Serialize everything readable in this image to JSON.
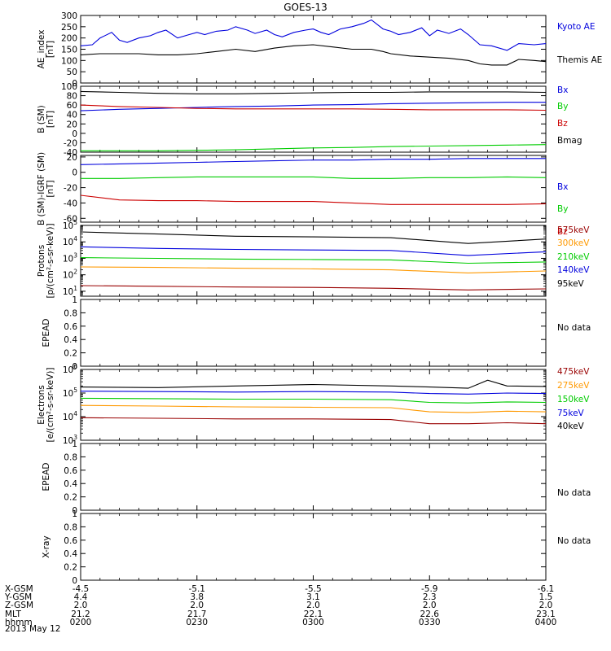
{
  "title": "GOES-13",
  "date": "2013 May 12",
  "orbit": {
    "labels": [
      "X-GSM",
      "Y-GSM",
      "Z-GSM",
      "MLT",
      "hhmm"
    ],
    "columns": [
      {
        "values": [
          "-4.5",
          "4.4",
          "2.0",
          "21.2",
          "0200"
        ]
      },
      {
        "values": [
          "-5.1",
          "3.8",
          "2.0",
          "21.7",
          "0230"
        ]
      },
      {
        "values": [
          "-5.5",
          "3.1",
          "2.0",
          "22.1",
          "0300"
        ]
      },
      {
        "values": [
          "-5.9",
          "2.3",
          "2.0",
          "22.6",
          "0330"
        ]
      },
      {
        "values": [
          "-6.1",
          "1.5",
          "2.0",
          "23.1",
          "0400"
        ]
      }
    ]
  },
  "colors": {
    "black": "#000000",
    "blue": "#0000dd",
    "green": "#00cc00",
    "red": "#cc0000",
    "orange": "#ff9900",
    "darkred": "#990000"
  },
  "chart_data": [
    {
      "type": "line",
      "ylabel": "AE_index\n[nT]",
      "ylim": [
        0,
        300
      ],
      "yticks": [
        0,
        50,
        100,
        150,
        200,
        250,
        300
      ],
      "series": [
        {
          "name": "Kyoto AE",
          "color": "#0000dd",
          "x": [
            0,
            3,
            5,
            8,
            10,
            12,
            15,
            18,
            20,
            22,
            25,
            28,
            30,
            32,
            35,
            38,
            40,
            43,
            45,
            48,
            50,
            52,
            55,
            58,
            60,
            62,
            64,
            67,
            70,
            73,
            75,
            78,
            80,
            82,
            85,
            88,
            90,
            92,
            95,
            98,
            100,
            103,
            106,
            110,
            113,
            117,
            120
          ],
          "values": [
            165,
            170,
            200,
            225,
            190,
            180,
            200,
            210,
            225,
            235,
            200,
            215,
            225,
            215,
            230,
            235,
            250,
            235,
            220,
            235,
            215,
            205,
            225,
            235,
            240,
            225,
            215,
            240,
            250,
            265,
            280,
            240,
            230,
            215,
            225,
            245,
            210,
            235,
            220,
            240,
            215,
            170,
            165,
            145,
            175,
            170,
            175
          ]
        },
        {
          "name": "Themis AE",
          "color": "#000000",
          "x": [
            0,
            5,
            10,
            15,
            20,
            25,
            30,
            35,
            40,
            45,
            50,
            55,
            60,
            65,
            70,
            75,
            78,
            80,
            85,
            90,
            95,
            100,
            103,
            106,
            110,
            113,
            117,
            120
          ],
          "values": [
            125,
            130,
            130,
            130,
            125,
            125,
            130,
            140,
            150,
            140,
            155,
            165,
            170,
            160,
            150,
            150,
            140,
            130,
            120,
            115,
            110,
            100,
            85,
            80,
            80,
            105,
            100,
            95
          ]
        }
      ]
    },
    {
      "type": "line",
      "ylabel": "B (SM)\n[nT]",
      "ylim": [
        -40,
        100
      ],
      "yticks": [
        -40,
        -20,
        0,
        20,
        40,
        60,
        80,
        100
      ],
      "series": [
        {
          "name": "Bx",
          "color": "#0000dd",
          "x": [
            0,
            10,
            20,
            30,
            40,
            50,
            60,
            70,
            80,
            90,
            100,
            110,
            120
          ],
          "values": [
            48,
            51,
            53,
            55,
            57,
            58,
            60,
            61,
            63,
            64,
            65,
            66,
            66
          ]
        },
        {
          "name": "By",
          "color": "#00cc00",
          "x": [
            0,
            10,
            20,
            30,
            40,
            50,
            60,
            70,
            80,
            90,
            100,
            110,
            120
          ],
          "values": [
            -37,
            -37,
            -37,
            -36,
            -35,
            -33,
            -31,
            -30,
            -28,
            -27,
            -26,
            -25,
            -24
          ]
        },
        {
          "name": "Bz",
          "color": "#cc0000",
          "x": [
            0,
            10,
            20,
            30,
            40,
            50,
            60,
            70,
            80,
            90,
            100,
            110,
            120
          ],
          "values": [
            60,
            57,
            55,
            53,
            52,
            52,
            52,
            52,
            51,
            50,
            50,
            50,
            49
          ]
        },
        {
          "name": "Bmag",
          "color": "#000000",
          "x": [
            0,
            10,
            20,
            30,
            40,
            50,
            60,
            70,
            80,
            90,
            100,
            110,
            120
          ],
          "values": [
            89,
            87,
            85,
            84,
            84,
            85,
            86,
            87,
            87,
            88,
            88,
            88,
            87
          ]
        }
      ]
    },
    {
      "type": "line",
      "ylabel": "B (SM)-IGRF (SM)\n[nT]",
      "ylim": [
        -65,
        22
      ],
      "yticks": [
        -60,
        -40,
        -20,
        0,
        20
      ],
      "series": [
        {
          "name": "Bx",
          "color": "#0000dd",
          "x": [
            0,
            10,
            20,
            30,
            40,
            50,
            60,
            70,
            80,
            90,
            100,
            110,
            120
          ],
          "values": [
            10,
            11,
            12,
            13,
            14,
            15,
            16,
            16,
            17,
            17,
            18,
            18,
            18
          ]
        },
        {
          "name": "By",
          "color": "#00cc00",
          "x": [
            0,
            10,
            20,
            30,
            40,
            50,
            60,
            70,
            80,
            90,
            100,
            110,
            120
          ],
          "values": [
            -8,
            -8,
            -7,
            -6,
            -6,
            -6,
            -6,
            -8,
            -8,
            -7,
            -7,
            -6,
            -7
          ]
        },
        {
          "name": "Bz",
          "color": "#cc0000",
          "x": [
            0,
            10,
            20,
            30,
            40,
            50,
            60,
            70,
            80,
            90,
            100,
            110,
            120
          ],
          "values": [
            -30,
            -36,
            -37,
            -37,
            -38,
            -38,
            -38,
            -40,
            -42,
            -42,
            -42,
            -42,
            -41
          ]
        }
      ]
    },
    {
      "type": "line",
      "ylabel": "Protons\n[p/(cm²-s-sr-keV)]",
      "yscale": "log",
      "ylim": [
        5,
        100000
      ],
      "yticks": [
        10,
        100,
        1000,
        10000,
        100000
      ],
      "series": [
        {
          "name": "575keV",
          "color": "#990000",
          "x": [
            0,
            20,
            40,
            60,
            80,
            100,
            120
          ],
          "values": [
            22,
            20,
            18,
            17,
            15,
            12,
            14
          ]
        },
        {
          "name": "300keV",
          "color": "#ff9900",
          "x": [
            0,
            20,
            40,
            60,
            80,
            100,
            120
          ],
          "values": [
            300,
            280,
            250,
            230,
            200,
            130,
            170
          ]
        },
        {
          "name": "210keV",
          "color": "#00cc00",
          "x": [
            0,
            20,
            40,
            60,
            80,
            100,
            120
          ],
          "values": [
            1100,
            1000,
            900,
            850,
            800,
            500,
            600
          ]
        },
        {
          "name": "140keV",
          "color": "#0000dd",
          "x": [
            0,
            20,
            40,
            60,
            80,
            100,
            120
          ],
          "values": [
            5000,
            4000,
            3500,
            3200,
            3000,
            1500,
            2500
          ]
        },
        {
          "name": "95keV",
          "color": "#000000",
          "x": [
            0,
            20,
            40,
            60,
            80,
            100,
            120
          ],
          "values": [
            40000,
            30000,
            22000,
            20000,
            18000,
            8000,
            15000
          ]
        }
      ]
    },
    {
      "type": "line",
      "ylabel": "EPEAD",
      "ylim": [
        0,
        1
      ],
      "yticks": [
        0,
        0.2,
        0.4,
        0.6,
        0.8,
        1.0
      ],
      "note": "No data",
      "series": []
    },
    {
      "type": "line",
      "ylabel": "Electrons\n[e/(cm²-s-sr-keV)]",
      "yscale": "log",
      "ylim": [
        1000,
        1000000
      ],
      "yticks": [
        1000,
        10000,
        100000,
        1000000
      ],
      "series": [
        {
          "name": "475keV",
          "color": "#990000",
          "x": [
            0,
            20,
            40,
            60,
            80,
            90,
            100,
            110,
            120
          ],
          "values": [
            9000,
            8500,
            8000,
            8000,
            7500,
            5000,
            5000,
            5500,
            5000
          ]
        },
        {
          "name": "275keV",
          "color": "#ff9900",
          "x": [
            0,
            20,
            40,
            60,
            80,
            90,
            100,
            110,
            120
          ],
          "values": [
            30000,
            28000,
            26000,
            25000,
            24000,
            16000,
            15000,
            17000,
            16000
          ]
        },
        {
          "name": "150keV",
          "color": "#00cc00",
          "x": [
            0,
            20,
            40,
            60,
            80,
            90,
            100,
            110,
            120
          ],
          "values": [
            60000,
            58000,
            55000,
            55000,
            52000,
            40000,
            38000,
            42000,
            40000
          ]
        },
        {
          "name": "75keV",
          "color": "#0000dd",
          "x": [
            0,
            20,
            40,
            60,
            80,
            90,
            100,
            110,
            120
          ],
          "values": [
            120000,
            115000,
            110000,
            115000,
            110000,
            95000,
            90000,
            100000,
            95000
          ]
        },
        {
          "name": "40keV",
          "color": "#000000",
          "x": [
            0,
            20,
            40,
            60,
            80,
            90,
            100,
            105,
            110,
            120
          ],
          "values": [
            180000,
            170000,
            200000,
            230000,
            200000,
            180000,
            160000,
            350000,
            200000,
            190000
          ]
        }
      ]
    },
    {
      "type": "line",
      "ylabel": "EPEAD",
      "ylim": [
        0,
        1
      ],
      "yticks": [
        0,
        0.2,
        0.4,
        0.6,
        0.8,
        1.0
      ],
      "note": "No data",
      "series": []
    },
    {
      "type": "line",
      "ylabel": "X-ray",
      "ylim": [
        0,
        1
      ],
      "yticks": [
        0,
        0.2,
        0.4,
        0.6,
        0.8,
        1.0
      ],
      "note": "No data",
      "series": []
    }
  ]
}
